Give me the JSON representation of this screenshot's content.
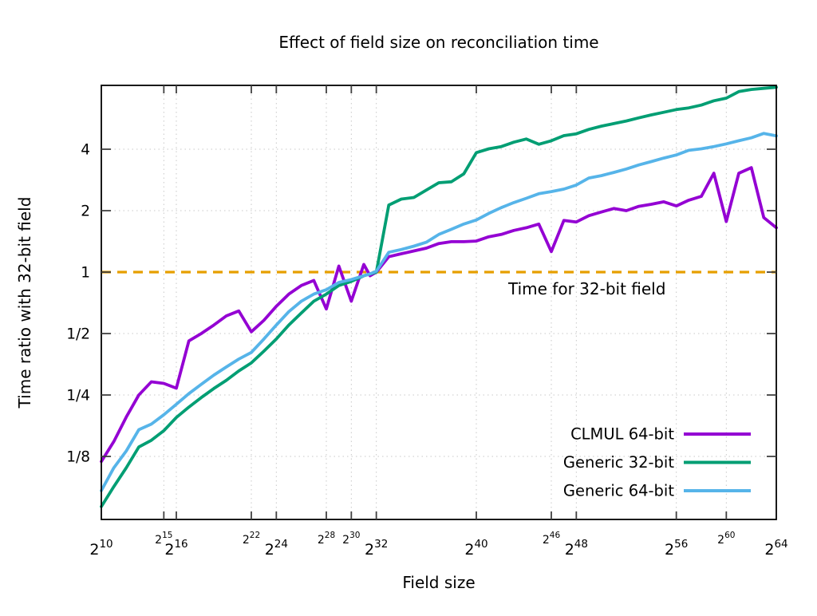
{
  "title": "Effect of field size on reconciliation time",
  "background": "#ffffff",
  "axes": {
    "x": {
      "label": "Field size",
      "scale": "log2",
      "tick_notation": "2^exponent",
      "range_exponents": [
        10,
        64
      ],
      "major_tick_exponents": [
        10,
        16,
        24,
        32,
        40,
        48,
        56,
        64
      ],
      "minor_tick_exponents": [
        15,
        22,
        28,
        30,
        46,
        60
      ],
      "grid_tick_exponents": [
        15,
        16,
        22,
        24,
        28,
        30,
        32,
        40,
        46,
        48,
        56,
        60
      ],
      "minor_label_color": "#848484"
    },
    "y": {
      "label": "Time ratio with 32-bit field",
      "scale": "log2",
      "range": [
        0.0614,
        8.22
      ],
      "ticks": [
        {
          "label": "4",
          "value": 4,
          "color": "#000000"
        },
        {
          "label": "2",
          "value": 2,
          "color": "#000000"
        },
        {
          "label": "1",
          "value": 1,
          "color": "#E69F00"
        },
        {
          "label": "1/2",
          "value": 0.5,
          "color": "#000000"
        },
        {
          "label": "1/4",
          "value": 0.25,
          "color": "#000000"
        },
        {
          "label": "1/8",
          "value": 0.125,
          "color": "#000000"
        }
      ]
    }
  },
  "reference_line": {
    "value": 1,
    "label": "Time for 32-bit field",
    "color": "#E69F00"
  },
  "legend": {
    "items": [
      {
        "label": "CLMUL 64-bit",
        "color": "#9400D3"
      },
      {
        "label": "Generic 32-bit",
        "color": "#009E73"
      },
      {
        "label": "Generic 64-bit",
        "color": "#56B4E9"
      }
    ]
  },
  "chart_data": {
    "type": "line",
    "title": "Effect of field size on reconciliation time",
    "xlabel": "Field size",
    "ylabel": "Time ratio with 32-bit field",
    "x_unit": "field size as 2^exponent",
    "x_range": "2^10 to 2^64",
    "ylim": [
      0.0614,
      8.22
    ],
    "y_scale": "log2",
    "grid": true,
    "legend_position": "inside-bottom-right",
    "x_exponents": [
      10,
      11,
      12,
      13,
      14,
      15,
      16,
      17,
      18,
      19,
      20,
      21,
      22,
      23,
      24,
      25,
      26,
      27,
      28,
      29,
      30,
      31,
      31.5,
      32,
      33,
      34,
      35,
      36,
      37,
      38,
      39,
      40,
      41,
      42,
      43,
      44,
      45,
      46,
      47,
      48,
      49,
      50,
      51,
      52,
      53,
      54,
      55,
      56,
      57,
      58,
      59,
      60,
      61,
      62,
      63,
      64
    ],
    "series": [
      {
        "name": "CLMUL 64-bit",
        "color": "#9400D3",
        "values": [
          0.118,
          0.148,
          0.195,
          0.25,
          0.29,
          0.285,
          0.27,
          0.46,
          0.5,
          0.55,
          0.61,
          0.645,
          0.51,
          0.58,
          0.68,
          0.78,
          0.86,
          0.91,
          0.66,
          1.07,
          0.72,
          1.09,
          0.96,
          1.0,
          1.19,
          1.23,
          1.27,
          1.31,
          1.38,
          1.41,
          1.41,
          1.42,
          1.49,
          1.53,
          1.6,
          1.65,
          1.72,
          1.26,
          1.79,
          1.76,
          1.89,
          1.97,
          2.05,
          2.0,
          2.1,
          2.15,
          2.21,
          2.11,
          2.25,
          2.35,
          3.05,
          1.77,
          3.05,
          3.25,
          1.85,
          1.65
        ]
      },
      {
        "name": "Generic 32-bit",
        "color": "#009E73",
        "values": [
          0.071,
          0.089,
          0.11,
          0.139,
          0.15,
          0.167,
          0.194,
          0.218,
          0.243,
          0.269,
          0.295,
          0.328,
          0.359,
          0.41,
          0.47,
          0.55,
          0.63,
          0.72,
          0.78,
          0.86,
          0.9,
          0.96,
          0.98,
          1.0,
          2.13,
          2.28,
          2.32,
          2.52,
          2.74,
          2.77,
          3.03,
          3.85,
          4.02,
          4.12,
          4.33,
          4.49,
          4.23,
          4.4,
          4.66,
          4.76,
          5.0,
          5.19,
          5.34,
          5.5,
          5.7,
          5.89,
          6.07,
          6.26,
          6.38,
          6.58,
          6.91,
          7.12,
          7.66,
          7.85,
          7.95,
          8.05
        ]
      },
      {
        "name": "Generic 64-bit",
        "color": "#56B4E9",
        "values": [
          0.085,
          0.11,
          0.133,
          0.169,
          0.18,
          0.2,
          0.225,
          0.254,
          0.282,
          0.313,
          0.343,
          0.375,
          0.404,
          0.47,
          0.55,
          0.64,
          0.72,
          0.78,
          0.82,
          0.89,
          0.92,
          0.96,
          0.98,
          1.01,
          1.25,
          1.29,
          1.34,
          1.4,
          1.53,
          1.62,
          1.72,
          1.8,
          1.94,
          2.07,
          2.19,
          2.3,
          2.42,
          2.48,
          2.55,
          2.67,
          2.89,
          2.97,
          3.08,
          3.2,
          3.35,
          3.48,
          3.62,
          3.75,
          3.95,
          4.02,
          4.12,
          4.25,
          4.4,
          4.55,
          4.78,
          4.65
        ]
      }
    ]
  }
}
